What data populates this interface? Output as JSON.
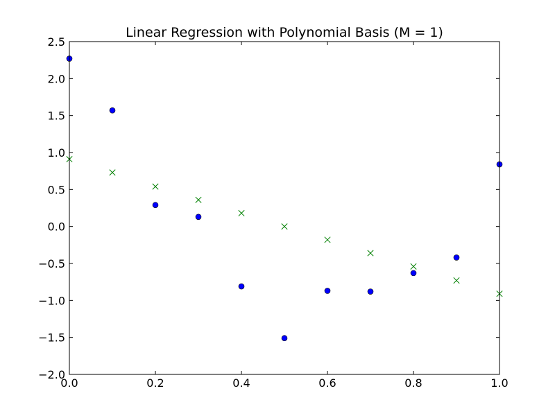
{
  "chart_data": {
    "type": "scatter",
    "title": "Linear Regression with Polynomial Basis (M = 1)",
    "xlabel": "",
    "ylabel": "",
    "xlim": [
      0.0,
      1.0
    ],
    "ylim": [
      -2.0,
      2.5
    ],
    "grid": false,
    "x_ticks": [
      "0.0",
      "0.2",
      "0.4",
      "0.6",
      "0.8",
      "1.0"
    ],
    "y_ticks": [
      "−2.0",
      "−1.5",
      "−1.0",
      "−0.5",
      "0.0",
      "0.5",
      "1.0",
      "1.5",
      "2.0",
      "2.5"
    ],
    "series": [
      {
        "marker": "circle",
        "color": "#0000ff",
        "x": [
          0.0,
          0.1,
          0.2,
          0.3,
          0.4,
          0.5,
          0.6,
          0.7,
          0.8,
          0.9,
          1.0
        ],
        "y": [
          2.27,
          1.57,
          0.29,
          0.13,
          -0.81,
          -1.51,
          -0.87,
          -0.88,
          -0.63,
          -0.42,
          0.84
        ]
      },
      {
        "marker": "x",
        "color": "#008000",
        "x": [
          0.0,
          0.1,
          0.2,
          0.3,
          0.4,
          0.5,
          0.6,
          0.7,
          0.8,
          0.9,
          1.0
        ],
        "y": [
          0.91,
          0.73,
          0.54,
          0.36,
          0.18,
          0.0,
          -0.18,
          -0.36,
          -0.54,
          -0.73,
          -0.91
        ]
      }
    ]
  }
}
